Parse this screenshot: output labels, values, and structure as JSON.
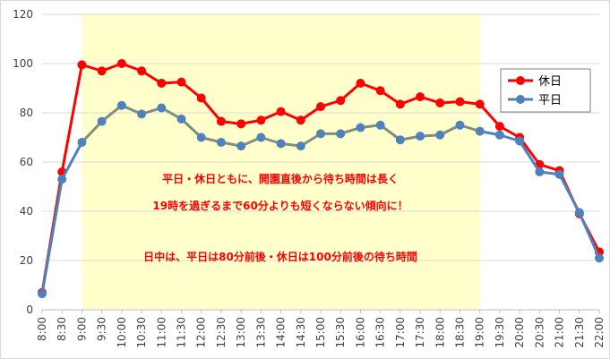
{
  "chart_data": {
    "type": "line",
    "title": "",
    "xlabel": "",
    "ylabel": "",
    "ylim": [
      0,
      120
    ],
    "yticks": [
      0,
      20,
      40,
      60,
      80,
      100,
      120
    ],
    "grid": "horizontal",
    "legend": "right",
    "categories": [
      "8:00",
      "8:30",
      "9:00",
      "9:30",
      "10:00",
      "10:30",
      "11:00",
      "11:30",
      "12:00",
      "12:30",
      "13:00",
      "13:30",
      "14:00",
      "14:30",
      "15:00",
      "15:30",
      "16:00",
      "16:30",
      "17:00",
      "17:30",
      "18:00",
      "18:30",
      "19:00",
      "19:30",
      "20:00",
      "20:30",
      "21:00",
      "21:30",
      "22:00"
    ],
    "highlight": {
      "from": "9:00",
      "to": "19:00",
      "color": "#ffffcc"
    },
    "series": [
      {
        "name": "休日",
        "color": "#ff0000",
        "values": [
          7,
          56,
          99.5,
          97,
          100,
          97,
          92,
          92.5,
          86,
          76.5,
          75.5,
          77,
          80.5,
          77,
          82.5,
          85,
          92,
          89,
          83.5,
          86.5,
          84,
          84.5,
          83.5,
          74.5,
          70,
          59,
          56.5,
          39,
          23.5
        ]
      },
      {
        "name": "平日",
        "color": "#4f81bd",
        "line_color": "#7f8f7f",
        "values": [
          6.5,
          53,
          68,
          76.5,
          83,
          79.5,
          82,
          77.5,
          70,
          68,
          66.5,
          70,
          67.5,
          66.5,
          71.5,
          71.5,
          74,
          75,
          69,
          70.5,
          71,
          75,
          72.5,
          71,
          68.5,
          56,
          55,
          39.5,
          21
        ]
      }
    ],
    "annotations": [
      "平日・休日ともに、開園直後から待ち時間は長く",
      "19時を過ぎるまで60分よりも短くならない傾向に！",
      "日中は、平日は80分前後・休日は100分前後の待ち時間"
    ]
  }
}
